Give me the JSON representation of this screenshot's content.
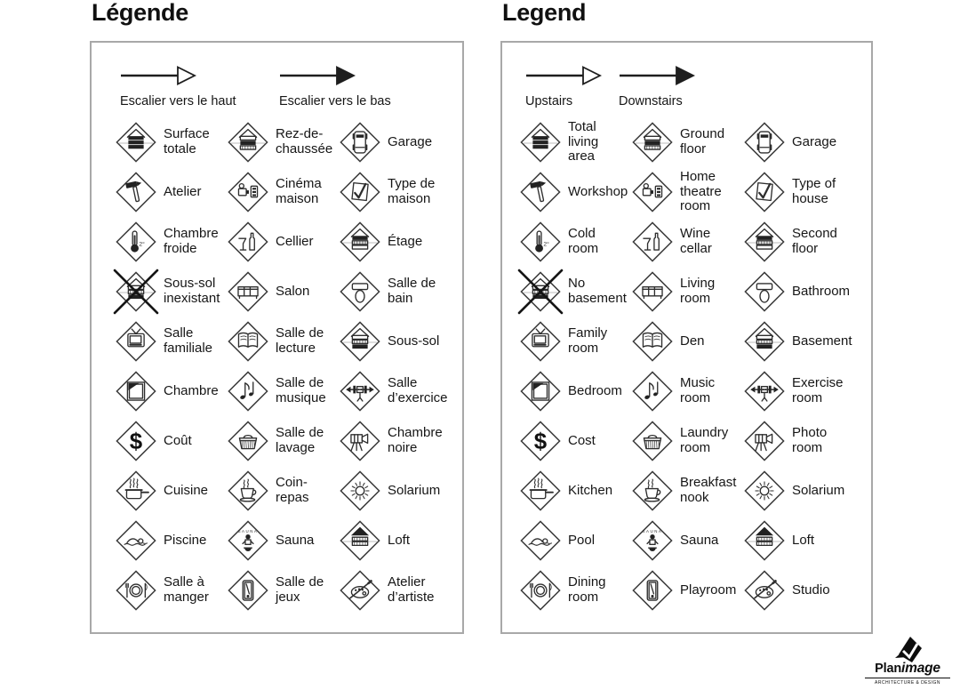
{
  "colors": {
    "ink": "#1a1a1a",
    "icon_line": "#2e2e2e",
    "panel_border": "#a8a8a8",
    "fill_black": "#222222"
  },
  "logo": {
    "brand_bold": "Plan",
    "brand_italic": "image",
    "tagline": "ARCHITECTURE & DESIGN"
  },
  "panels": [
    {
      "id": "fr",
      "title": "Légende",
      "arrows": [
        {
          "name": "stairs-up",
          "glyph": "arrow-outline",
          "label": "Escalier vers le haut"
        },
        {
          "name": "stairs-down",
          "glyph": "arrow-filled",
          "label": "Escalier vers le bas"
        }
      ],
      "items": [
        {
          "name": "total-living-area",
          "glyph": "house-layers-filled",
          "label": "Surface\ntotale"
        },
        {
          "name": "ground-floor",
          "glyph": "house-ground-floor",
          "label": "Rez-de-\nchaussée"
        },
        {
          "name": "garage",
          "glyph": "car",
          "label": "Garage"
        },
        {
          "name": "workshop",
          "glyph": "hammer",
          "label": "Atelier"
        },
        {
          "name": "home-theatre-room",
          "glyph": "projector",
          "label": "Cinéma\nmaison"
        },
        {
          "name": "type-of-house",
          "glyph": "check-sheet",
          "label": "Type de\nmaison"
        },
        {
          "name": "cold-room",
          "glyph": "thermometer",
          "label": "Chambre\nfroide"
        },
        {
          "name": "wine-cellar",
          "glyph": "wine",
          "label": "Cellier"
        },
        {
          "name": "second-floor",
          "glyph": "house-second-floor",
          "label": "Étage"
        },
        {
          "name": "no-basement",
          "glyph": "house-crossed",
          "label": "Sous-sol\ninexistant"
        },
        {
          "name": "living-room",
          "glyph": "sofa",
          "label": "Salon"
        },
        {
          "name": "bathroom",
          "glyph": "toilet",
          "label": "Salle de\nbain"
        },
        {
          "name": "family-room",
          "glyph": "tv",
          "label": "Salle\nfamiliale"
        },
        {
          "name": "den",
          "glyph": "open-book",
          "label": "Salle de\nlecture"
        },
        {
          "name": "basement",
          "glyph": "house-basement",
          "label": "Sous-sol"
        },
        {
          "name": "bedroom",
          "glyph": "bed",
          "label": "Chambre"
        },
        {
          "name": "music-room",
          "glyph": "music-note",
          "label": "Salle de\nmusique"
        },
        {
          "name": "exercise-room",
          "glyph": "barbell",
          "label": "Salle\nd’exercice"
        },
        {
          "name": "cost",
          "glyph": "dollar",
          "label": "Coût"
        },
        {
          "name": "laundry-room",
          "glyph": "basket",
          "label": "Salle de\nlavage"
        },
        {
          "name": "photo-room",
          "glyph": "camera-tripod",
          "label": "Chambre\nnoire"
        },
        {
          "name": "kitchen",
          "glyph": "cooking-pot",
          "label": "Cuisine"
        },
        {
          "name": "breakfast-nook",
          "glyph": "coffee-cup",
          "label": "Coin-\nrepas"
        },
        {
          "name": "solarium",
          "glyph": "sun",
          "label": "Solarium"
        },
        {
          "name": "pool",
          "glyph": "swimmer",
          "label": "Piscine"
        },
        {
          "name": "sauna",
          "glyph": "sauna-person",
          "label": "Sauna"
        },
        {
          "name": "loft",
          "glyph": "house-roof",
          "label": "Loft"
        },
        {
          "name": "dining-room",
          "glyph": "plate-cutlery",
          "label": "Salle à\nmanger"
        },
        {
          "name": "playroom",
          "glyph": "pool-table",
          "label": "Salle de\njeux"
        },
        {
          "name": "studio",
          "glyph": "palette",
          "label": "Atelier\nd’artiste"
        }
      ]
    },
    {
      "id": "en",
      "title": "Legend",
      "arrows": [
        {
          "name": "stairs-up",
          "glyph": "arrow-outline",
          "label": "Upstairs"
        },
        {
          "name": "stairs-down",
          "glyph": "arrow-filled",
          "label": "Downstairs"
        }
      ],
      "items": [
        {
          "name": "total-living-area",
          "glyph": "house-layers-filled",
          "label": "Total\nliving\narea"
        },
        {
          "name": "ground-floor",
          "glyph": "house-ground-floor",
          "label": "Ground\nfloor"
        },
        {
          "name": "garage",
          "glyph": "car",
          "label": "Garage"
        },
        {
          "name": "workshop",
          "glyph": "hammer",
          "label": "Workshop"
        },
        {
          "name": "home-theatre-room",
          "glyph": "projector",
          "label": "Home\ntheatre\nroom"
        },
        {
          "name": "type-of-house",
          "glyph": "check-sheet",
          "label": "Type of\nhouse"
        },
        {
          "name": "cold-room",
          "glyph": "thermometer",
          "label": "Cold\nroom"
        },
        {
          "name": "wine-cellar",
          "glyph": "wine",
          "label": "Wine\ncellar"
        },
        {
          "name": "second-floor",
          "glyph": "house-second-floor",
          "label": "Second\nfloor"
        },
        {
          "name": "no-basement",
          "glyph": "house-crossed",
          "label": "No\nbasement"
        },
        {
          "name": "living-room",
          "glyph": "sofa",
          "label": "Living\nroom"
        },
        {
          "name": "bathroom",
          "glyph": "toilet",
          "label": "Bathroom"
        },
        {
          "name": "family-room",
          "glyph": "tv",
          "label": "Family\nroom"
        },
        {
          "name": "den",
          "glyph": "open-book",
          "label": "Den"
        },
        {
          "name": "basement",
          "glyph": "house-basement",
          "label": "Basement"
        },
        {
          "name": "bedroom",
          "glyph": "bed",
          "label": "Bedroom"
        },
        {
          "name": "music-room",
          "glyph": "music-note",
          "label": "Music\nroom"
        },
        {
          "name": "exercise-room",
          "glyph": "barbell",
          "label": "Exercise\nroom"
        },
        {
          "name": "cost",
          "glyph": "dollar",
          "label": "Cost"
        },
        {
          "name": "laundry-room",
          "glyph": "basket",
          "label": "Laundry\nroom"
        },
        {
          "name": "photo-room",
          "glyph": "camera-tripod",
          "label": "Photo\nroom"
        },
        {
          "name": "kitchen",
          "glyph": "cooking-pot",
          "label": "Kitchen"
        },
        {
          "name": "breakfast-nook",
          "glyph": "coffee-cup",
          "label": "Breakfast\nnook"
        },
        {
          "name": "solarium",
          "glyph": "sun",
          "label": "Solarium"
        },
        {
          "name": "pool",
          "glyph": "swimmer",
          "label": "Pool"
        },
        {
          "name": "sauna",
          "glyph": "sauna-person",
          "label": "Sauna"
        },
        {
          "name": "loft",
          "glyph": "house-roof",
          "label": "Loft"
        },
        {
          "name": "dining-room",
          "glyph": "plate-cutlery",
          "label": "Dining\nroom"
        },
        {
          "name": "playroom",
          "glyph": "pool-table",
          "label": "Playroom"
        },
        {
          "name": "studio",
          "glyph": "palette",
          "label": "Studio"
        }
      ]
    }
  ]
}
